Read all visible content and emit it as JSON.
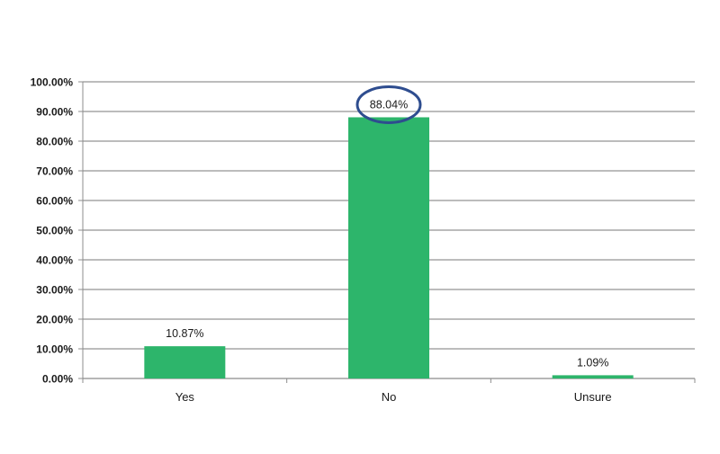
{
  "chart_data": {
    "type": "bar",
    "categories": [
      "Yes",
      "No",
      "Unsure"
    ],
    "values": [
      10.87,
      88.04,
      1.09
    ],
    "data_labels": [
      "10.87%",
      "88.04%",
      "1.09%"
    ],
    "ylim": [
      0,
      100
    ],
    "yticks": [
      0,
      10,
      20,
      30,
      40,
      50,
      60,
      70,
      80,
      90,
      100
    ],
    "ytick_labels": [
      "0.00%",
      "10.00%",
      "20.00%",
      "30.00%",
      "40.00%",
      "50.00%",
      "60.00%",
      "70.00%",
      "80.00%",
      "90.00%",
      "100.00%"
    ],
    "grid": true,
    "legend": "none",
    "highlighted_category": "No",
    "bar_color": "#2db56b",
    "grid_color": "#a6a6a6",
    "highlight_color": "#2e4d8f"
  }
}
